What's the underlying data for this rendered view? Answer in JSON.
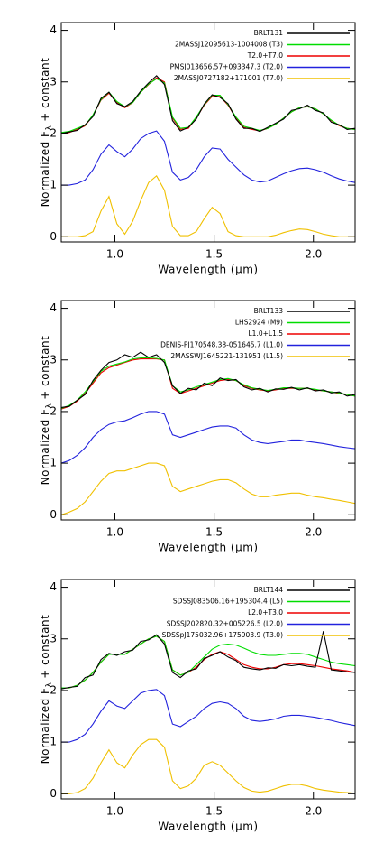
{
  "chart_data": [
    {
      "type": "line",
      "xlabel": "Wavelength (μm)",
      "ylabel": "Normalized F",
      "ylabel_sub": "λ",
      "ylabel_end": "+ constant",
      "xlim": [
        0.73,
        2.21
      ],
      "ylim": [
        -0.1,
        4.15
      ],
      "xticks": [
        {
          "value": 1,
          "label": "1.0"
        },
        {
          "value": 1.5,
          "label": "1.5"
        },
        {
          "value": 2,
          "label": "2.0"
        }
      ],
      "yticks": [
        0,
        1,
        2,
        3,
        4
      ],
      "legend": "upper right",
      "x": [
        0.73,
        0.77,
        0.81,
        0.85,
        0.89,
        0.93,
        0.97,
        1.01,
        1.05,
        1.09,
        1.13,
        1.17,
        1.21,
        1.25,
        1.29,
        1.33,
        1.37,
        1.41,
        1.45,
        1.49,
        1.53,
        1.57,
        1.61,
        1.65,
        1.69,
        1.73,
        1.77,
        1.81,
        1.85,
        1.89,
        1.93,
        1.97,
        2.01,
        2.05,
        2.09,
        2.13,
        2.17,
        2.21
      ],
      "series": [
        {
          "name": "BRLT131",
          "color": "#000000",
          "values": [
            2.0,
            2.03,
            2.06,
            2.17,
            2.33,
            2.68,
            2.8,
            2.58,
            2.52,
            2.62,
            2.82,
            2.98,
            3.12,
            2.95,
            2.25,
            2.05,
            2.12,
            2.28,
            2.57,
            2.75,
            2.7,
            2.58,
            2.28,
            2.1,
            2.1,
            2.04,
            2.12,
            2.2,
            2.28,
            2.45,
            2.48,
            2.55,
            2.45,
            2.4,
            2.22,
            2.17,
            2.08,
            2.1
          ]
        },
        {
          "name": "2MASSJ12095613-1004008 (T3)",
          "color": "#00dd00",
          "values": [
            2.02,
            2.04,
            2.1,
            2.16,
            2.36,
            2.66,
            2.8,
            2.62,
            2.52,
            2.6,
            2.8,
            2.96,
            3.06,
            2.98,
            2.32,
            2.1,
            2.12,
            2.32,
            2.56,
            2.74,
            2.74,
            2.56,
            2.32,
            2.14,
            2.1,
            2.06,
            2.1,
            2.18,
            2.3,
            2.42,
            2.5,
            2.52,
            2.48,
            2.38,
            2.26,
            2.16,
            2.1,
            2.08
          ]
        },
        {
          "name": "T2.0+T7.0",
          "color": "#ee0000",
          "values": [
            2.0,
            2.02,
            2.08,
            2.15,
            2.35,
            2.65,
            2.78,
            2.6,
            2.5,
            2.6,
            2.8,
            2.95,
            3.08,
            3.0,
            2.3,
            2.08,
            2.1,
            2.3,
            2.55,
            2.72,
            2.72,
            2.55,
            2.3,
            2.12,
            2.08,
            2.05,
            2.1,
            2.18,
            2.3,
            2.42,
            2.5,
            2.52,
            2.48,
            2.38,
            2.25,
            2.15,
            2.1,
            2.08
          ]
        },
        {
          "name": "IPMSJ013656.57+093347.3 (T2.0)",
          "color": "#2222dd",
          "values": [
            1.0,
            1.0,
            1.03,
            1.1,
            1.3,
            1.6,
            1.78,
            1.65,
            1.55,
            1.7,
            1.9,
            2.0,
            2.05,
            1.85,
            1.25,
            1.1,
            1.15,
            1.3,
            1.55,
            1.72,
            1.7,
            1.5,
            1.35,
            1.2,
            1.1,
            1.06,
            1.08,
            1.15,
            1.22,
            1.28,
            1.32,
            1.33,
            1.3,
            1.25,
            1.18,
            1.12,
            1.08,
            1.05
          ]
        },
        {
          "name": "2MASSJ0727182+171001 (T7.0)",
          "color": "#f0c000",
          "values": [
            0,
            0,
            0,
            0.02,
            0.1,
            0.5,
            0.78,
            0.25,
            0.05,
            0.3,
            0.7,
            1.05,
            1.18,
            0.9,
            0.2,
            0.02,
            0.02,
            0.1,
            0.35,
            0.57,
            0.45,
            0.1,
            0.02,
            0,
            0,
            0,
            0,
            0.03,
            0.08,
            0.12,
            0.15,
            0.14,
            0.1,
            0.05,
            0.02,
            0,
            0,
            0
          ]
        }
      ]
    },
    {
      "type": "line",
      "xlabel": "Wavelength (μm)",
      "ylabel": "Normalized F",
      "ylabel_sub": "λ",
      "ylabel_end": "+ constant",
      "xlim": [
        0.73,
        2.21
      ],
      "ylim": [
        -0.1,
        4.15
      ],
      "xticks": [
        {
          "value": 1,
          "label": "1.0"
        },
        {
          "value": 1.5,
          "label": "1.5"
        },
        {
          "value": 2,
          "label": "2.0"
        }
      ],
      "yticks": [
        0,
        1,
        2,
        3,
        4
      ],
      "legend": "upper right",
      "x": [
        0.73,
        0.77,
        0.81,
        0.85,
        0.89,
        0.93,
        0.97,
        1.01,
        1.05,
        1.09,
        1.13,
        1.17,
        1.21,
        1.25,
        1.29,
        1.33,
        1.37,
        1.41,
        1.45,
        1.49,
        1.53,
        1.57,
        1.61,
        1.65,
        1.69,
        1.73,
        1.77,
        1.81,
        1.85,
        1.89,
        1.93,
        1.97,
        2.01,
        2.05,
        2.09,
        2.13,
        2.17,
        2.21
      ],
      "series": [
        {
          "name": "BRLT133",
          "color": "#000000",
          "values": [
            2.08,
            2.1,
            2.22,
            2.33,
            2.6,
            2.8,
            2.95,
            3.0,
            3.1,
            3.05,
            3.15,
            3.05,
            3.1,
            2.95,
            2.5,
            2.35,
            2.45,
            2.42,
            2.55,
            2.5,
            2.65,
            2.6,
            2.62,
            2.48,
            2.42,
            2.45,
            2.38,
            2.44,
            2.43,
            2.47,
            2.42,
            2.46,
            2.4,
            2.42,
            2.36,
            2.38,
            2.3,
            2.33
          ]
        },
        {
          "name": "LHS2924 (M9)",
          "color": "#00dd00",
          "values": [
            2.06,
            2.12,
            2.22,
            2.38,
            2.58,
            2.78,
            2.88,
            2.92,
            2.96,
            3.02,
            3.04,
            3.04,
            3.03,
            3.0,
            2.5,
            2.38,
            2.42,
            2.48,
            2.52,
            2.57,
            2.62,
            2.64,
            2.6,
            2.52,
            2.46,
            2.43,
            2.41,
            2.43,
            2.46,
            2.46,
            2.45,
            2.45,
            2.43,
            2.4,
            2.38,
            2.36,
            2.33,
            2.3
          ]
        },
        {
          "name": "L1.0+L1.5",
          "color": "#ee0000",
          "values": [
            2.05,
            2.1,
            2.2,
            2.35,
            2.55,
            2.75,
            2.85,
            2.9,
            2.95,
            3.0,
            3.02,
            3.02,
            3.02,
            3.0,
            2.45,
            2.35,
            2.4,
            2.45,
            2.5,
            2.55,
            2.6,
            2.62,
            2.6,
            2.5,
            2.45,
            2.42,
            2.4,
            2.42,
            2.45,
            2.45,
            2.45,
            2.45,
            2.42,
            2.4,
            2.38,
            2.35,
            2.33,
            2.3
          ]
        },
        {
          "name": "DENIS-PJ170548.38-051645.7 (L1.0)",
          "color": "#2222dd",
          "values": [
            1.0,
            1.05,
            1.15,
            1.3,
            1.5,
            1.65,
            1.75,
            1.8,
            1.82,
            1.88,
            1.95,
            2.0,
            2.0,
            1.95,
            1.55,
            1.5,
            1.55,
            1.6,
            1.65,
            1.7,
            1.72,
            1.72,
            1.68,
            1.55,
            1.45,
            1.4,
            1.38,
            1.4,
            1.42,
            1.45,
            1.45,
            1.42,
            1.4,
            1.38,
            1.35,
            1.32,
            1.3,
            1.28
          ]
        },
        {
          "name": "2MASSWJ1645221-131951 (L1.5)",
          "color": "#f0c000",
          "values": [
            0,
            0.05,
            0.12,
            0.25,
            0.45,
            0.65,
            0.8,
            0.85,
            0.85,
            0.9,
            0.95,
            1.0,
            1.0,
            0.95,
            0.55,
            0.45,
            0.5,
            0.55,
            0.6,
            0.65,
            0.68,
            0.68,
            0.62,
            0.5,
            0.4,
            0.35,
            0.35,
            0.38,
            0.4,
            0.42,
            0.42,
            0.38,
            0.35,
            0.33,
            0.3,
            0.28,
            0.25,
            0.22
          ]
        }
      ]
    },
    {
      "type": "line",
      "xlabel": "Wavelength (μm)",
      "ylabel": "Normalized F",
      "ylabel_sub": "λ",
      "ylabel_end": "+ constant",
      "xlim": [
        0.73,
        2.21
      ],
      "ylim": [
        -0.1,
        4.15
      ],
      "xticks": [
        {
          "value": 1,
          "label": "1.0"
        },
        {
          "value": 1.5,
          "label": "1.5"
        },
        {
          "value": 2,
          "label": "2.0"
        }
      ],
      "yticks": [
        0,
        1,
        2,
        3,
        4
      ],
      "legend": "upper right",
      "x": [
        0.73,
        0.77,
        0.81,
        0.85,
        0.89,
        0.93,
        0.97,
        1.01,
        1.05,
        1.09,
        1.13,
        1.17,
        1.21,
        1.25,
        1.29,
        1.33,
        1.37,
        1.41,
        1.45,
        1.49,
        1.53,
        1.57,
        1.61,
        1.65,
        1.69,
        1.73,
        1.77,
        1.81,
        1.85,
        1.89,
        1.93,
        1.97,
        2.01,
        2.05,
        2.09,
        2.13,
        2.17,
        2.21
      ],
      "series": [
        {
          "name": "BRLT144",
          "color": "#000000",
          "values": [
            2.03,
            2.06,
            2.08,
            2.25,
            2.3,
            2.6,
            2.72,
            2.68,
            2.75,
            2.78,
            2.95,
            2.98,
            3.08,
            2.9,
            2.35,
            2.25,
            2.38,
            2.42,
            2.62,
            2.68,
            2.75,
            2.65,
            2.58,
            2.45,
            2.42,
            2.4,
            2.44,
            2.43,
            2.5,
            2.48,
            2.5,
            2.47,
            2.45,
            3.15,
            2.4,
            2.38,
            2.36,
            2.35
          ]
        },
        {
          "name": "SDSSJ083506.16+195304.4 (L5)",
          "color": "#00dd00",
          "values": [
            2.05,
            2.05,
            2.1,
            2.2,
            2.35,
            2.55,
            2.7,
            2.7,
            2.7,
            2.8,
            2.9,
            3.0,
            3.05,
            2.95,
            2.4,
            2.3,
            2.35,
            2.5,
            2.65,
            2.8,
            2.88,
            2.9,
            2.88,
            2.82,
            2.75,
            2.7,
            2.68,
            2.68,
            2.7,
            2.72,
            2.72,
            2.7,
            2.65,
            2.6,
            2.55,
            2.52,
            2.5,
            2.48
          ]
        },
        {
          "name": "L2.0+T3.0",
          "color": "#ee0000",
          "values": [
            2.05,
            2.05,
            2.1,
            2.2,
            2.35,
            2.55,
            2.7,
            2.7,
            2.7,
            2.8,
            2.9,
            3.0,
            3.05,
            2.95,
            2.4,
            2.3,
            2.35,
            2.45,
            2.6,
            2.7,
            2.75,
            2.7,
            2.6,
            2.5,
            2.45,
            2.42,
            2.42,
            2.45,
            2.5,
            2.52,
            2.52,
            2.5,
            2.48,
            2.45,
            2.42,
            2.4,
            2.38,
            2.35
          ]
        },
        {
          "name": "SDSSJ202820.32+005226.5 (L2.0)",
          "color": "#2222dd",
          "values": [
            1.0,
            1.0,
            1.05,
            1.15,
            1.35,
            1.6,
            1.8,
            1.7,
            1.65,
            1.8,
            1.95,
            2.0,
            2.02,
            1.9,
            1.35,
            1.3,
            1.4,
            1.5,
            1.65,
            1.75,
            1.78,
            1.75,
            1.65,
            1.5,
            1.42,
            1.4,
            1.42,
            1.45,
            1.5,
            1.52,
            1.52,
            1.5,
            1.48,
            1.45,
            1.42,
            1.38,
            1.35,
            1.32
          ]
        },
        {
          "name": "SDSSpJ175032.96+175903.9 (T3.0)",
          "color": "#f0c000",
          "values": [
            0,
            0,
            0.02,
            0.1,
            0.3,
            0.6,
            0.85,
            0.6,
            0.5,
            0.75,
            0.95,
            1.05,
            1.05,
            0.9,
            0.25,
            0.1,
            0.15,
            0.3,
            0.55,
            0.62,
            0.55,
            0.4,
            0.25,
            0.12,
            0.05,
            0.03,
            0.05,
            0.1,
            0.15,
            0.18,
            0.18,
            0.15,
            0.1,
            0.07,
            0.05,
            0.03,
            0.02,
            0.01
          ]
        }
      ]
    }
  ]
}
